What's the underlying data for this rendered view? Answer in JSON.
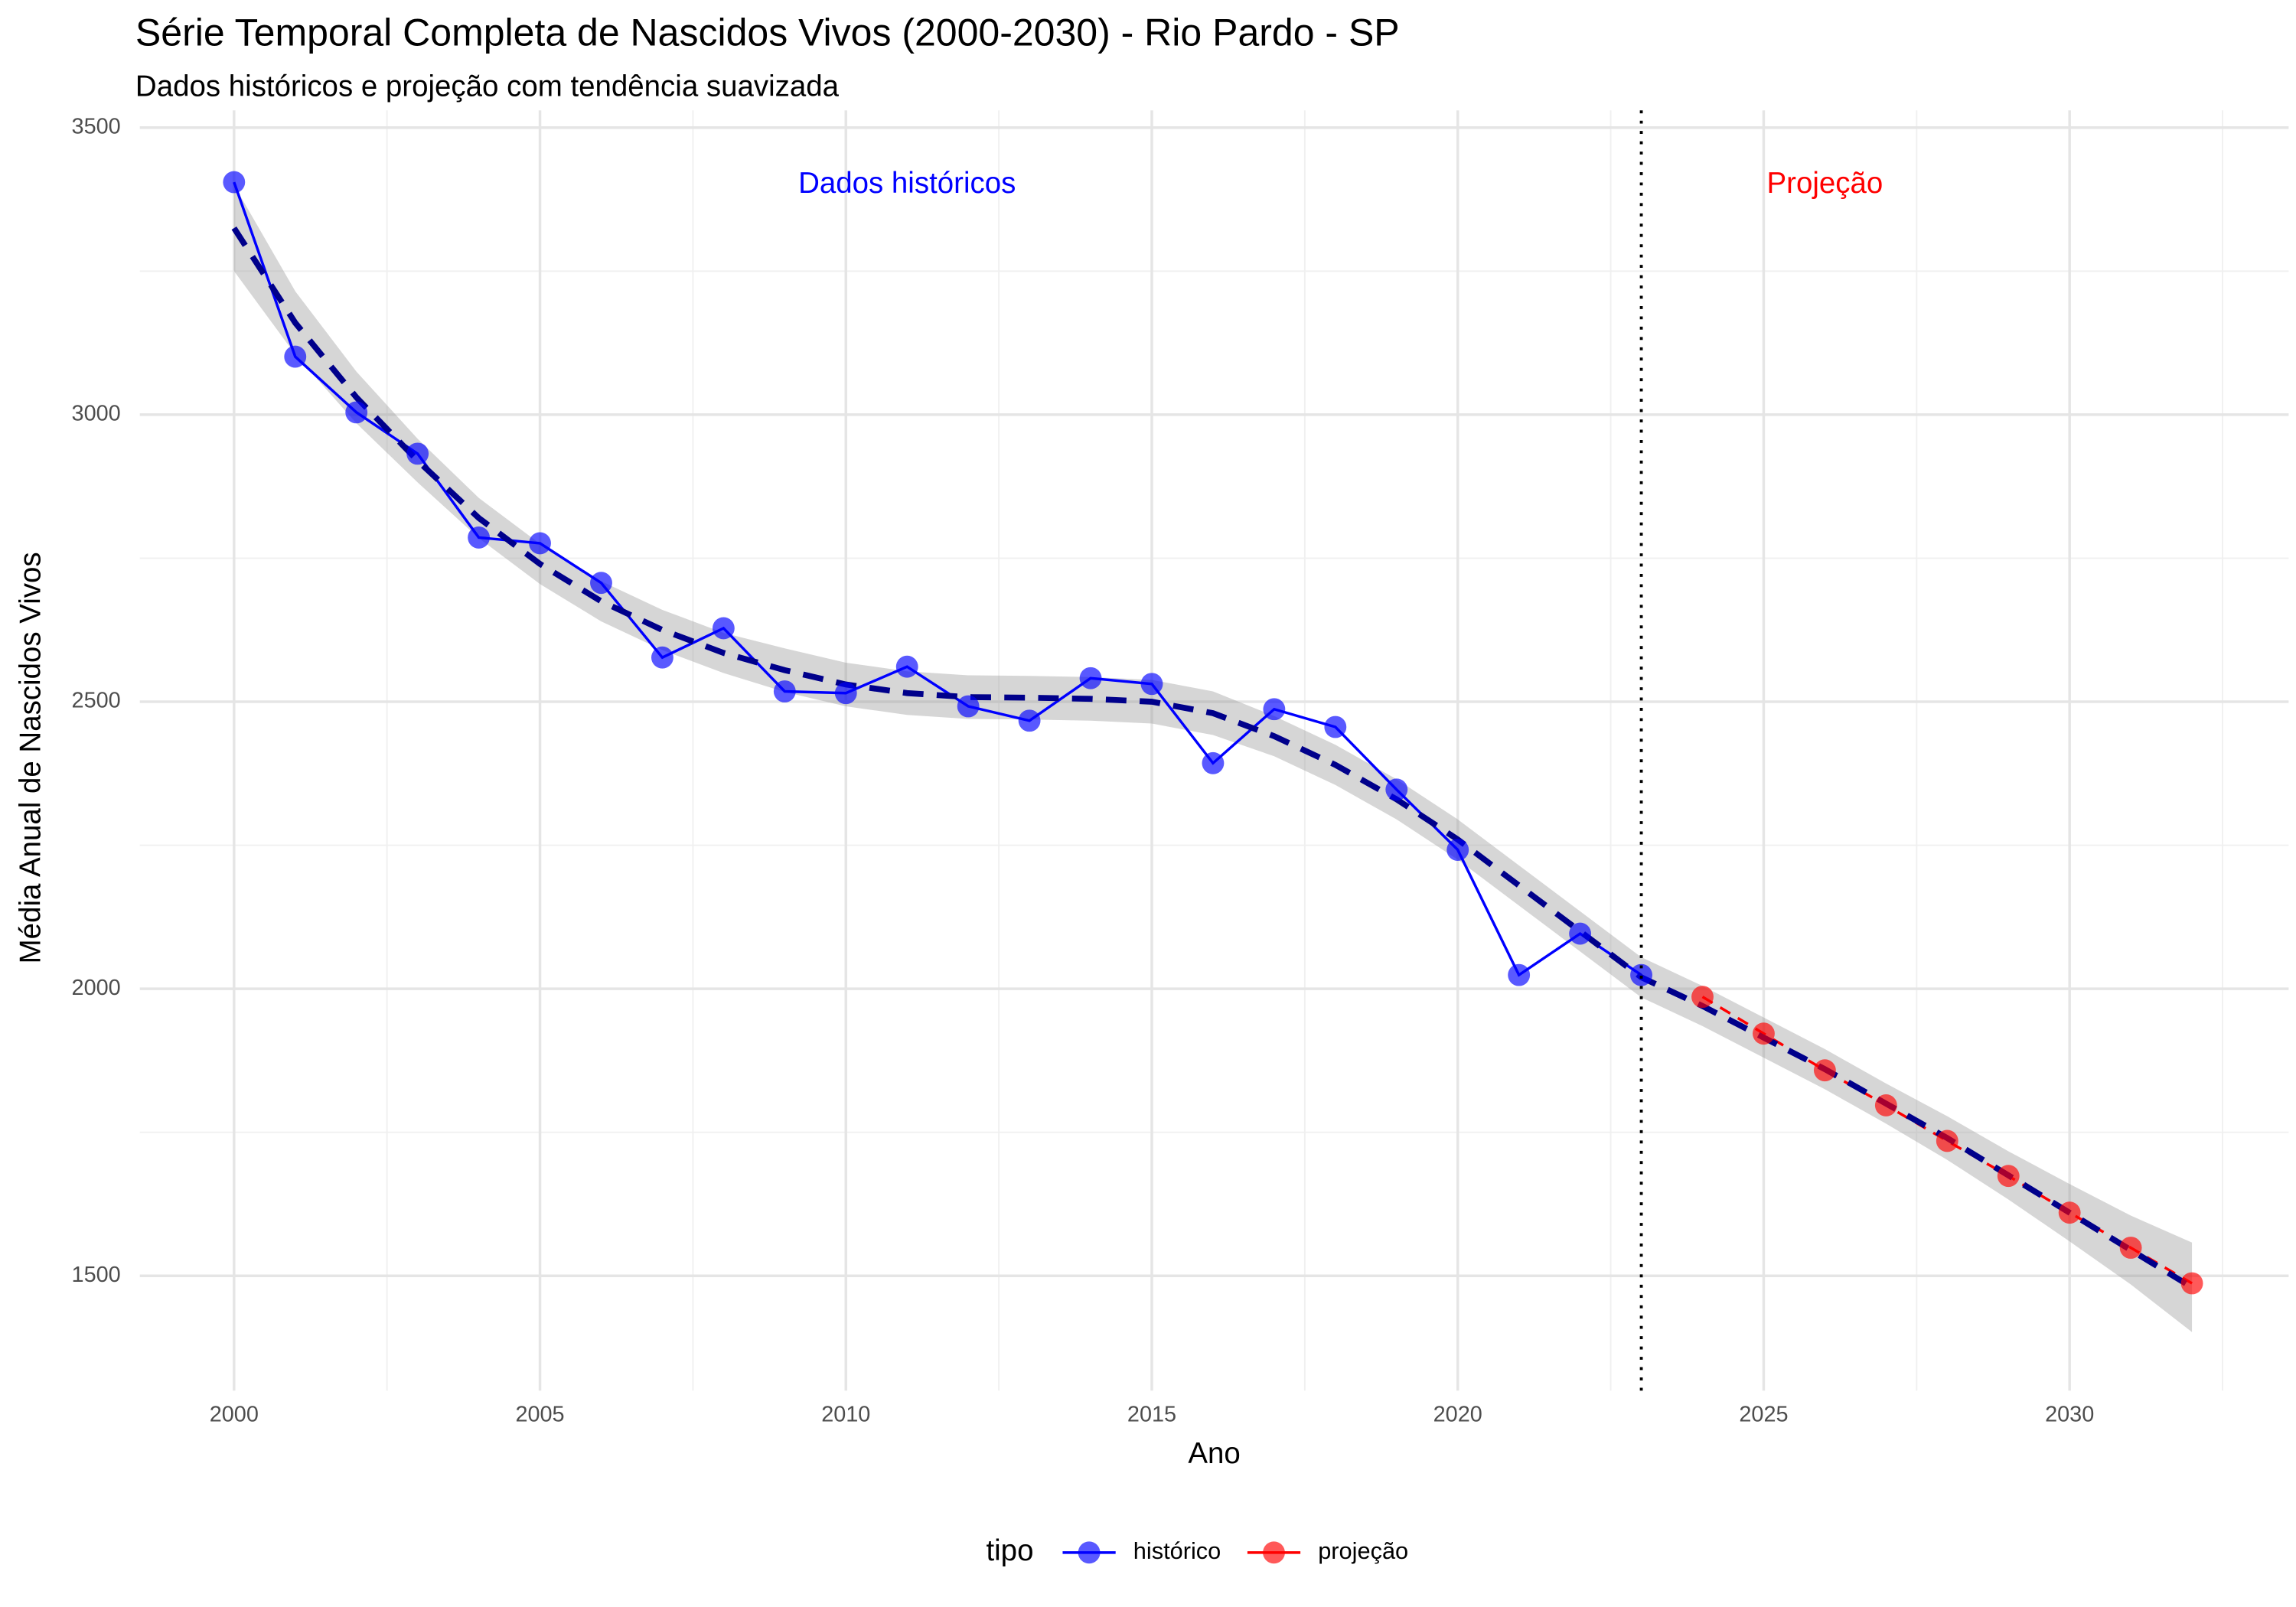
{
  "chart_data": {
    "type": "line",
    "title": "Série Temporal Completa de Nascidos Vivos (2000-2030) -  Rio Pardo - SP",
    "subtitle": "Dados históricos e projeção com tendência suavizada",
    "x_label": "Ano",
    "y_label": "Média Anual de Nascidos Vivos",
    "legend_title": "tipo",
    "legend_position": "bottom",
    "grid": true,
    "xlim": [
      1998.46,
      2033.58
    ],
    "ylim": [
      1300,
      3530
    ],
    "xticks": [
      2000,
      2005,
      2010,
      2015,
      2020,
      2025,
      2030
    ],
    "yticks": [
      1500,
      2000,
      2500,
      3000,
      3500
    ],
    "x_minor_ticks": [
      2002.5,
      2007.5,
      2012.5,
      2017.5,
      2022.5,
      2027.5,
      2032.5
    ],
    "y_minor_ticks": [
      1750,
      2250,
      2750,
      3250
    ],
    "vline": {
      "x": 2023,
      "color": "#000000"
    },
    "annotations": [
      {
        "text": "Dados históricos",
        "x": 2011,
        "y": 3400,
        "color": "#0000ff"
      },
      {
        "text": "Projeção",
        "x": 2026,
        "y": 3400,
        "color": "#ff0000"
      }
    ],
    "series": [
      {
        "name": "histórico",
        "color": "#0000ff",
        "dashed": false,
        "x": [
          2000,
          2001,
          2002,
          2003,
          2004,
          2005,
          2006,
          2007,
          2008,
          2009,
          2010,
          2011,
          2012,
          2013,
          2014,
          2015,
          2016,
          2017,
          2018,
          2019,
          2020,
          2021,
          2022,
          2023
        ],
        "values": [
          3405,
          3101,
          3004,
          2932,
          2786,
          2776,
          2707,
          2577,
          2628,
          2518,
          2515,
          2561,
          2492,
          2467,
          2541,
          2531,
          2393,
          2487,
          2456,
          2347,
          2242,
          2024,
          2096,
          2024
        ]
      },
      {
        "name": "projeção",
        "color": "#ff0000",
        "dashed": true,
        "x": [
          2024,
          2025,
          2026,
          2027,
          2028,
          2029,
          2030,
          2031,
          2032
        ],
        "values": [
          1986,
          1922,
          1858,
          1797,
          1735,
          1674,
          1610,
          1549,
          1487
        ]
      }
    ],
    "smooth": {
      "color": "#00008b",
      "x": [
        2000,
        2001,
        2002,
        2003,
        2004,
        2005,
        2006,
        2007,
        2008,
        2009,
        2010,
        2011,
        2012,
        2013,
        2014,
        2015,
        2016,
        2017,
        2018,
        2019,
        2020,
        2021,
        2022,
        2023,
        2024,
        2025,
        2026,
        2027,
        2028,
        2029,
        2030,
        2031,
        2032
      ],
      "values": [
        3325,
        3160,
        3030,
        2920,
        2820,
        2740,
        2675,
        2625,
        2585,
        2555,
        2530,
        2515,
        2508,
        2507,
        2505,
        2500,
        2480,
        2440,
        2390,
        2330,
        2260,
        2180,
        2100,
        2020,
        1970,
        1915,
        1860,
        1800,
        1740,
        1675,
        1610,
        1545,
        1480
      ],
      "lower": [
        3250,
        3105,
        2985,
        2882,
        2785,
        2705,
        2640,
        2590,
        2550,
        2517,
        2492,
        2477,
        2470,
        2469,
        2467,
        2462,
        2442,
        2405,
        2355,
        2295,
        2225,
        2145,
        2065,
        1985,
        1935,
        1880,
        1825,
        1765,
        1702,
        1633,
        1560,
        1485,
        1402
      ],
      "upper": [
        3400,
        3215,
        3075,
        2958,
        2855,
        2775,
        2710,
        2660,
        2620,
        2593,
        2568,
        2553,
        2546,
        2545,
        2543,
        2538,
        2518,
        2475,
        2425,
        2365,
        2295,
        2215,
        2135,
        2055,
        2005,
        1950,
        1895,
        1835,
        1778,
        1717,
        1660,
        1605,
        1558
      ]
    }
  }
}
